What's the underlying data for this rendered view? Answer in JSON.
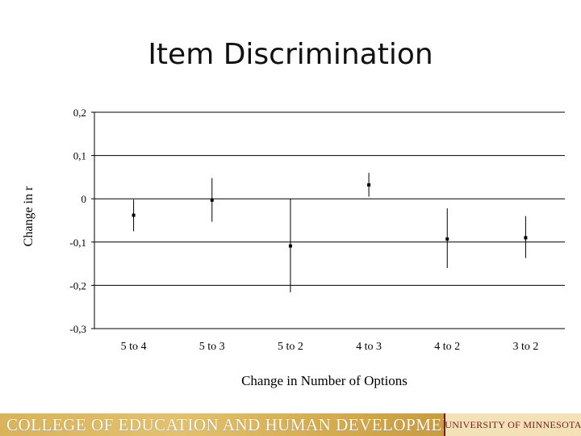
{
  "slide": {
    "title": "Item Discrimination"
  },
  "footer": {
    "college": "COLLEGE OF EDUCATION AND HUMAN DEVELOPMENT",
    "university": "UNIVERSITY OF MINNESOTA",
    "colors": {
      "gold": "#d9b35a",
      "maroon": "#7a1a1a"
    }
  },
  "chart_data": {
    "type": "scatter",
    "title": "",
    "xlabel": "Change in Number of Options",
    "ylabel": "Change in r",
    "categories": [
      "5 to 4",
      "5 to 3",
      "5 to 2",
      "4 to 3",
      "4 to 2",
      "3 to 2"
    ],
    "y_tick_labels": [
      "0,2",
      "0,1",
      "0",
      "-0,1",
      "-0,2",
      "-0,3"
    ],
    "y_ticks": [
      0.2,
      0.1,
      0,
      -0.1,
      -0.2,
      -0.3
    ],
    "ylim": [
      -0.3,
      0.2
    ],
    "grid": true,
    "legend": "none",
    "series": [
      {
        "values": [
          -0.038,
          -0.003,
          -0.109,
          0.032,
          -0.093,
          -0.09
        ],
        "error_low": [
          -0.075,
          -0.053,
          -0.216,
          0.005,
          -0.16,
          -0.137
        ],
        "error_high": [
          -0.002,
          0.048,
          0.0,
          0.06,
          -0.022,
          -0.04
        ]
      }
    ]
  }
}
